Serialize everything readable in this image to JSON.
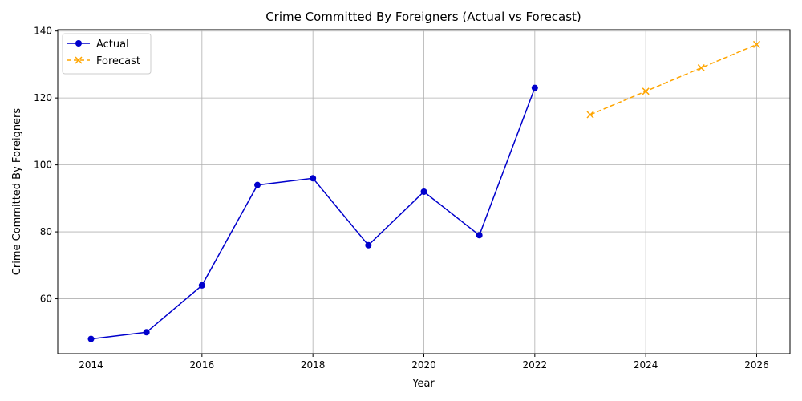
{
  "chart_data": {
    "type": "line",
    "title": "Crime Committed By Foreigners (Actual vs Forecast)",
    "xlabel": "Year",
    "ylabel": "Crime Committed By Foreigners",
    "xlim": [
      2013.4,
      2026.6
    ],
    "ylim": [
      43.6,
      140.4
    ],
    "xticks": [
      2014,
      2016,
      2018,
      2020,
      2022,
      2024,
      2026
    ],
    "yticks": [
      60,
      80,
      100,
      120,
      140
    ],
    "grid": true,
    "legend_position": "top-left",
    "series": [
      {
        "name": "Actual",
        "color": "#0000cc",
        "line_style": "solid",
        "marker": "circle",
        "x": [
          2014,
          2015,
          2016,
          2017,
          2018,
          2019,
          2020,
          2021,
          2022
        ],
        "y": [
          48,
          50,
          64,
          94,
          96,
          76,
          92,
          79,
          123
        ]
      },
      {
        "name": "Forecast",
        "color": "#ffa500",
        "line_style": "dashed",
        "marker": "x",
        "x": [
          2023,
          2024,
          2025,
          2026
        ],
        "y": [
          115,
          122,
          129,
          136
        ]
      }
    ]
  }
}
